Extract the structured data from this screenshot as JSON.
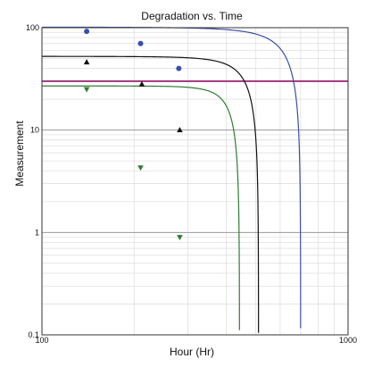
{
  "chart_data": {
    "type": "scatter",
    "title": "Degradation vs. Time",
    "xlabel": "Hour (Hr)",
    "ylabel": "Measurement",
    "xscale": "log",
    "yscale": "log",
    "xlim": [
      100,
      1000
    ],
    "ylim": [
      0.1,
      100
    ],
    "x_tick_labels": [
      "100",
      "1000"
    ],
    "y_tick_labels": [
      "0.1",
      "1",
      "10",
      "100"
    ],
    "grid": true,
    "legend": "none",
    "threshold": {
      "y": 30,
      "color": "#a0307a"
    },
    "series": [
      {
        "color": "#3a4fa8",
        "marker": "circle",
        "points": [
          [
            140,
            92
          ],
          [
            210,
            70
          ],
          [
            280,
            40
          ]
        ],
        "curve": {
          "a": 101.5,
          "b": 0.0096,
          "t0": 100,
          "tmax": 700
        }
      },
      {
        "color": "#111111",
        "marker": "triangle-up",
        "points": [
          [
            140,
            46
          ],
          [
            212,
            28
          ],
          [
            282,
            10
          ]
        ],
        "curve": {
          "a": 52.5,
          "b": 0.0164,
          "t0": 100,
          "tmax": 510
        }
      },
      {
        "color": "#2e7d32",
        "marker": "triangle-down",
        "points": [
          [
            140,
            25
          ],
          [
            210,
            4.3
          ],
          [
            282,
            0.9
          ]
        ],
        "curve": {
          "a": 27,
          "b": 0.0243,
          "t0": 100,
          "tmax": 442
        }
      }
    ]
  }
}
